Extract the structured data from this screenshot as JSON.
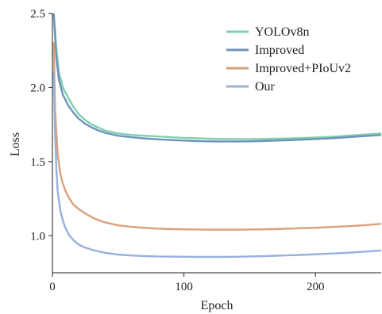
{
  "chart_data": {
    "type": "line",
    "title": "",
    "xlabel": "Epoch",
    "ylabel": "Loss",
    "xlim": [
      0,
      250
    ],
    "ylim": [
      0.75,
      2.5
    ],
    "xticks": [
      0,
      100,
      200
    ],
    "yticks": [
      1.0,
      1.5,
      2.0,
      2.5
    ],
    "xtick_labels": [
      "0",
      "100",
      "200"
    ],
    "ytick_labels": [
      "1.0",
      "1.5",
      "2.0",
      "2.5"
    ],
    "grid": false,
    "legend_position": "top-right",
    "series": [
      {
        "name": "YOLOv8n",
        "color": "#7fcfb0",
        "x": [
          1,
          3,
          5,
          8,
          12,
          16,
          20,
          25,
          30,
          35,
          40,
          50,
          60,
          70,
          80,
          90,
          100,
          110,
          120,
          130,
          140,
          150,
          160,
          170,
          180,
          190,
          200,
          210,
          220,
          230,
          240,
          250
        ],
        "y": [
          2.5,
          2.26,
          2.1,
          2.0,
          1.93,
          1.87,
          1.82,
          1.78,
          1.75,
          1.73,
          1.71,
          1.69,
          1.68,
          1.675,
          1.67,
          1.665,
          1.66,
          1.658,
          1.655,
          1.653,
          1.652,
          1.652,
          1.653,
          1.655,
          1.657,
          1.66,
          1.663,
          1.667,
          1.672,
          1.678,
          1.684,
          1.69
        ]
      },
      {
        "name": "Improved",
        "color": "#6e93b8",
        "x": [
          1,
          3,
          5,
          8,
          12,
          16,
          20,
          25,
          30,
          35,
          40,
          50,
          60,
          70,
          80,
          90,
          100,
          110,
          120,
          130,
          140,
          150,
          160,
          170,
          180,
          190,
          200,
          210,
          220,
          230,
          240,
          250
        ],
        "y": [
          2.5,
          2.2,
          2.05,
          1.95,
          1.88,
          1.83,
          1.79,
          1.755,
          1.73,
          1.71,
          1.695,
          1.675,
          1.665,
          1.657,
          1.651,
          1.646,
          1.642,
          1.639,
          1.637,
          1.636,
          1.636,
          1.637,
          1.639,
          1.642,
          1.645,
          1.649,
          1.653,
          1.657,
          1.662,
          1.668,
          1.674,
          1.68
        ]
      },
      {
        "name": "Improved+PIoUv2",
        "color": "#d9a07c",
        "x": [
          1,
          2,
          4,
          6,
          8,
          10,
          13,
          16,
          20,
          25,
          30,
          35,
          40,
          50,
          60,
          70,
          80,
          90,
          100,
          110,
          120,
          130,
          140,
          150,
          160,
          170,
          180,
          190,
          200,
          210,
          220,
          230,
          240,
          250
        ],
        "y": [
          2.3,
          1.85,
          1.55,
          1.42,
          1.35,
          1.3,
          1.25,
          1.21,
          1.18,
          1.15,
          1.125,
          1.105,
          1.09,
          1.07,
          1.06,
          1.053,
          1.048,
          1.045,
          1.043,
          1.042,
          1.041,
          1.041,
          1.041,
          1.042,
          1.043,
          1.045,
          1.048,
          1.051,
          1.054,
          1.058,
          1.062,
          1.067,
          1.073,
          1.08
        ]
      },
      {
        "name": "Our",
        "color": "#98b0dc",
        "x": [
          1,
          2,
          3,
          4,
          6,
          8,
          10,
          13,
          16,
          20,
          25,
          30,
          35,
          40,
          50,
          60,
          70,
          80,
          90,
          100,
          110,
          120,
          130,
          140,
          150,
          160,
          170,
          180,
          190,
          200,
          210,
          220,
          230,
          240,
          250
        ],
        "y": [
          2.1,
          1.7,
          1.45,
          1.3,
          1.17,
          1.1,
          1.05,
          1.0,
          0.97,
          0.94,
          0.92,
          0.905,
          0.895,
          0.885,
          0.873,
          0.867,
          0.863,
          0.86,
          0.859,
          0.858,
          0.857,
          0.857,
          0.857,
          0.858,
          0.86,
          0.862,
          0.865,
          0.868,
          0.871,
          0.875,
          0.879,
          0.883,
          0.888,
          0.894,
          0.9
        ]
      }
    ]
  }
}
